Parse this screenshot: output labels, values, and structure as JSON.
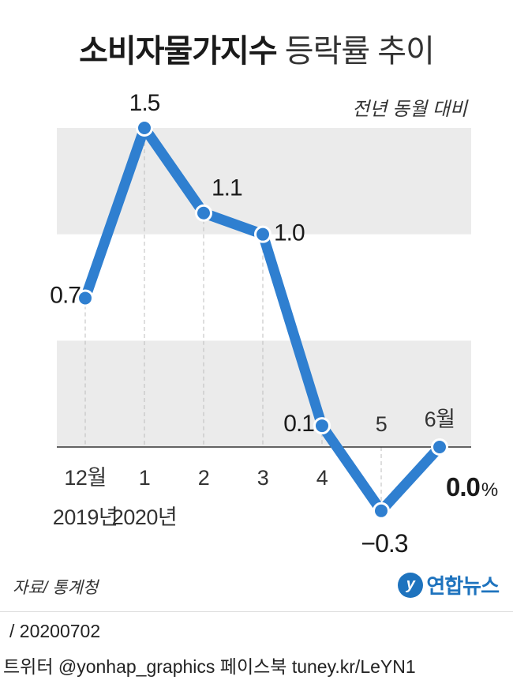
{
  "header": {
    "title_bold": "소비자물가지수",
    "title_light": "등락률 추이",
    "subtitle": "전년 동월 대비"
  },
  "chart_data": {
    "type": "line",
    "title": "소비자물가지수 등락률 추이",
    "subtitle": "전년 동월 대비",
    "unit": "%",
    "x": [
      "12월 2019년",
      "1 2020년",
      "2",
      "3",
      "4",
      "5",
      "6월"
    ],
    "tick_labels": [
      {
        "line1": "12월",
        "line2": "2019년"
      },
      {
        "line1": "1",
        "line2": "2020년"
      },
      {
        "line1": "2",
        "line2": ""
      },
      {
        "line1": "3",
        "line2": ""
      },
      {
        "line1": "4",
        "line2": ""
      },
      {
        "line1": "5",
        "line2": ""
      },
      {
        "line1": "6월",
        "line2": ""
      }
    ],
    "series": [
      {
        "values": [
          0.7,
          1.5,
          1.1,
          1.0,
          0.1,
          -0.3,
          0.0
        ]
      }
    ],
    "value_labels": [
      "0.7",
      "1.5",
      "1.1",
      "1.0",
      "0.1",
      "−0.3",
      "0.0"
    ],
    "ylim": [
      -0.3,
      1.5
    ],
    "line_color": "#2f7fd0",
    "band_color": "#ebebeb",
    "grid": false
  },
  "footer": {
    "source": "자료/ 통계청",
    "logo_text": "연합뉴스",
    "logo_mark": "y",
    "date": "/ 20200702",
    "social": "트위터 @yonhap_graphics  페이스북 tuney.kr/LeYN1"
  }
}
